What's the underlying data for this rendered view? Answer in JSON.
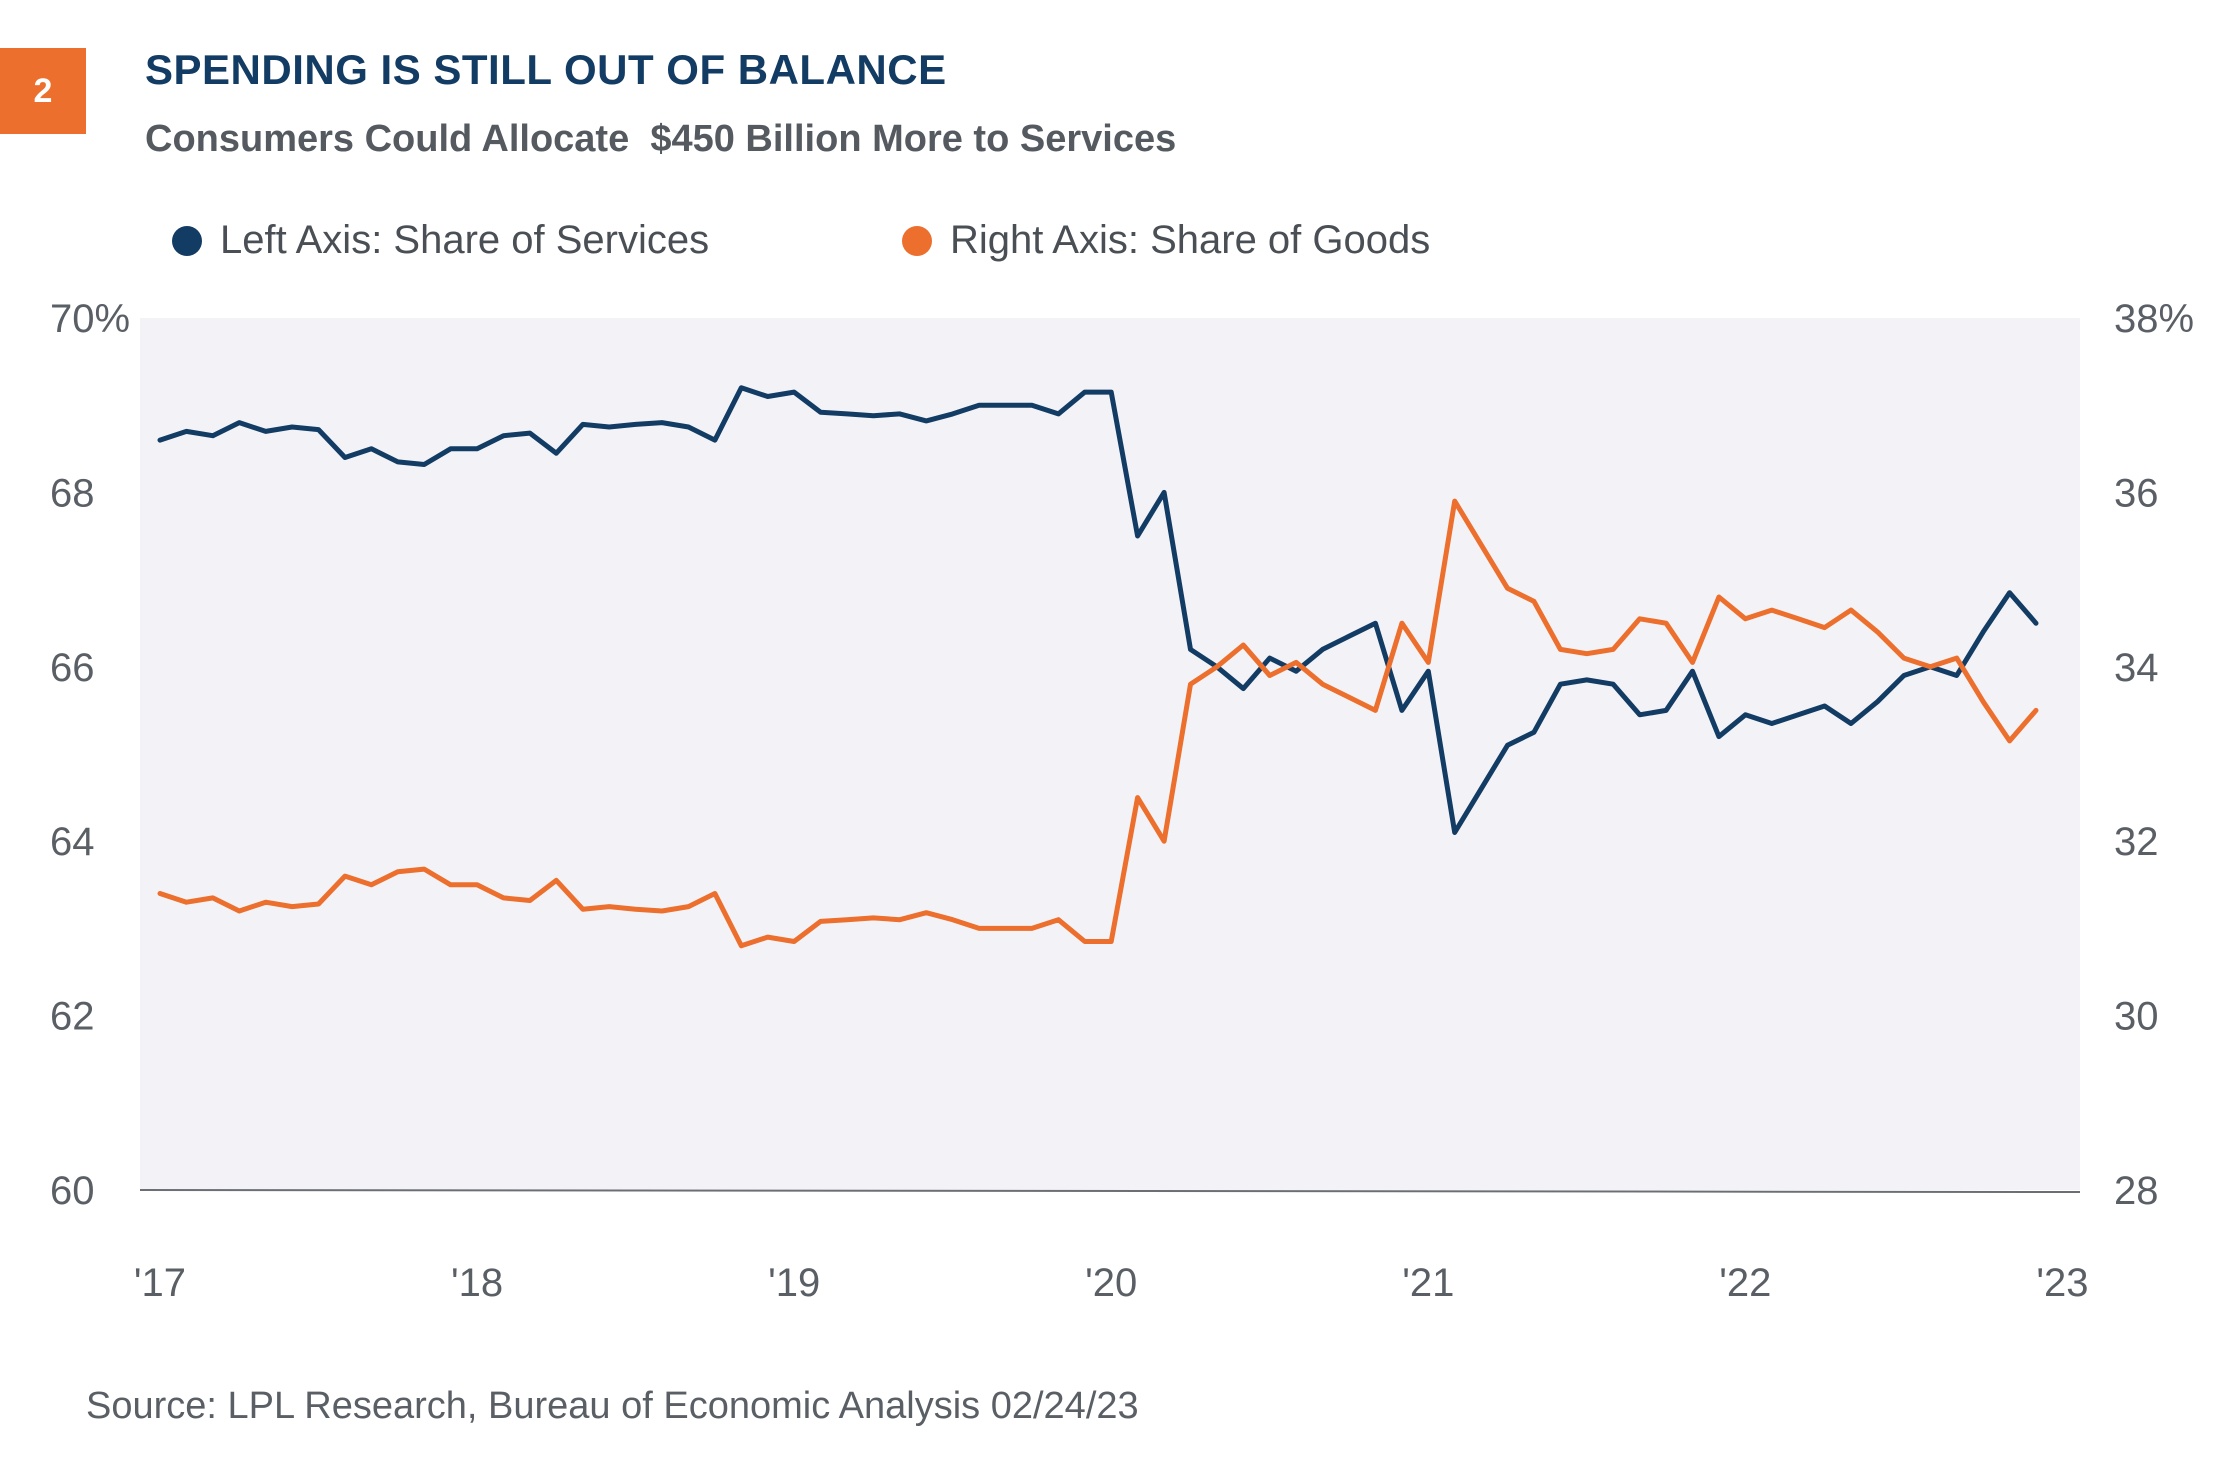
{
  "figure_number": "2",
  "title": "SPENDING IS STILL OUT OF BALANCE",
  "subtitle": "Consumers Could Allocate  $450 Billion More to Services",
  "source": "Source: LPL Research, Bureau of Economic Analysis  02/24/23",
  "colors": {
    "services": "#133C64",
    "goods": "#EC6F2D",
    "plot_bg": "#F3F3F7",
    "badge": "#EC6F2D"
  },
  "chart_data": {
    "type": "line",
    "title": "SPENDING IS STILL OUT OF BALANCE",
    "subtitle": "Consumers Could Allocate  $450 Billion More to Services",
    "legend_position": "top",
    "grid": false,
    "x_start": "2017-01",
    "x_frequency": "monthly",
    "x_ticks": [
      "'17",
      "'18",
      "'19",
      "'20",
      "'21",
      "'22",
      "'23"
    ],
    "y_left": {
      "ticks": [
        "70%",
        "68",
        "66",
        "64",
        "62",
        "60"
      ],
      "range": [
        60,
        70
      ]
    },
    "y_right": {
      "ticks": [
        "38%",
        "36",
        "34",
        "32",
        "30",
        "28"
      ],
      "range": [
        28,
        38
      ]
    },
    "series": [
      {
        "name": "Left Axis: Share of Services",
        "axis": "left",
        "color": "#133C64",
        "values": [
          68.6,
          68.7,
          68.65,
          68.8,
          68.7,
          68.75,
          68.72,
          68.4,
          68.5,
          68.35,
          68.32,
          68.5,
          68.5,
          68.65,
          68.68,
          68.45,
          68.78,
          68.75,
          68.78,
          68.8,
          68.75,
          68.6,
          69.2,
          69.1,
          69.15,
          68.92,
          68.9,
          68.88,
          68.9,
          68.82,
          68.9,
          69.0,
          69.0,
          69.0,
          68.9,
          69.15,
          69.15,
          67.5,
          68.0,
          66.2,
          66.0,
          65.75,
          66.1,
          65.95,
          66.2,
          66.35,
          66.5,
          65.5,
          65.95,
          64.1,
          64.6,
          65.1,
          65.25,
          65.8,
          65.85,
          65.8,
          65.45,
          65.5,
          65.95,
          65.2,
          65.45,
          65.35,
          65.45,
          65.55,
          65.35,
          65.6,
          65.9,
          66.0,
          65.9,
          66.4,
          66.85,
          66.5
        ]
      },
      {
        "name": "Right Axis: Share of Goods",
        "axis": "right",
        "color": "#EC6F2D",
        "values": [
          31.4,
          31.3,
          31.35,
          31.2,
          31.3,
          31.25,
          31.28,
          31.6,
          31.5,
          31.65,
          31.68,
          31.5,
          31.5,
          31.35,
          31.32,
          31.55,
          31.22,
          31.25,
          31.22,
          31.2,
          31.25,
          31.4,
          30.8,
          30.9,
          30.85,
          31.08,
          31.1,
          31.12,
          31.1,
          31.18,
          31.1,
          31.0,
          31.0,
          31.0,
          31.1,
          30.85,
          30.85,
          32.5,
          32.0,
          33.8,
          34.0,
          34.25,
          33.9,
          34.05,
          33.8,
          33.65,
          33.5,
          34.5,
          34.05,
          35.9,
          35.4,
          34.9,
          34.75,
          34.2,
          34.15,
          34.2,
          34.55,
          34.5,
          34.05,
          34.8,
          34.55,
          34.65,
          34.55,
          34.45,
          34.65,
          34.4,
          34.1,
          34.0,
          34.1,
          33.6,
          33.15,
          33.5
        ]
      }
    ]
  }
}
